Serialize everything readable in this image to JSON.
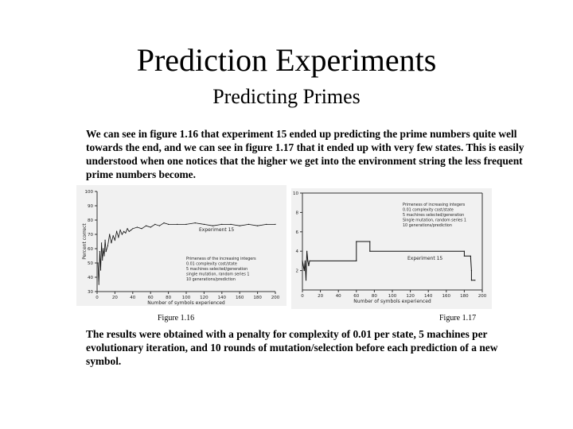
{
  "slide": {
    "title": "Prediction Experiments",
    "subtitle": "Predicting Primes",
    "paragraph_1": "We can see in figure 1.16 that experiment 15 ended up predicting the prime numbers quite well towards the end, and we can see in figure 1.17 that it ended up with very few states. This is easily understood when one notices that the higher we get into the environment string the less frequent prime numbers become.",
    "paragraph_2": "The results were obtained with a penalty for complexity of 0.01 per state, 5 machines per evolutionary iteration, and 10 rounds of mutation/selection before each prediction of a new symbol."
  },
  "figures": [
    {
      "caption": "Figure 1.16",
      "ylabel": "Percent correct",
      "xlabel": "Number of symbols experienced",
      "series_label": "Experiment 15",
      "legend_lines": [
        "Primeness of the increasing integers",
        "0.01 complexity cost/state",
        "5 machines selected/generation",
        "single mutation, random series 1",
        "10 generations/prediction"
      ],
      "yticks": [
        "100",
        "90",
        "80",
        "70",
        "60",
        "50",
        "40",
        "30"
      ],
      "xticks": [
        "0",
        "20",
        "40",
        "60",
        "80",
        "100",
        "120",
        "140",
        "160",
        "180",
        "200"
      ]
    },
    {
      "caption": "Figure 1.17",
      "ylabel": "Number of states",
      "xlabel": "Number of symbols experienced",
      "series_label": "Experiment 15",
      "legend_lines": [
        "Primeness of increasing integers",
        "0.01 complexity cost/state",
        "5 machines selected/generation",
        "Single mutation, random series 1",
        "10 generations/prediction"
      ],
      "yticks": [
        "10",
        "8",
        "6",
        "4",
        "2"
      ],
      "xticks": [
        "0",
        "20",
        "40",
        "60",
        "80",
        "100",
        "120",
        "140",
        "160",
        "180",
        "200"
      ]
    }
  ],
  "chart_data": [
    {
      "type": "line",
      "title": "",
      "xlabel": "Number of symbols experienced",
      "ylabel": "Percent correct",
      "xlim": [
        0,
        200
      ],
      "ylim": [
        30,
        100
      ],
      "series": [
        {
          "name": "Experiment 15",
          "x": [
            1,
            2,
            3,
            4,
            5,
            6,
            7,
            8,
            9,
            10,
            12,
            14,
            16,
            18,
            20,
            22,
            24,
            26,
            28,
            30,
            32,
            34,
            36,
            38,
            40,
            45,
            50,
            55,
            60,
            65,
            70,
            75,
            80,
            90,
            100,
            110,
            120,
            130,
            140,
            150,
            160,
            170,
            180,
            190,
            200
          ],
          "y": [
            50,
            35,
            58,
            45,
            64,
            52,
            60,
            55,
            66,
            58,
            62,
            70,
            64,
            69,
            66,
            72,
            68,
            73,
            70,
            72,
            71,
            74,
            72,
            73,
            74,
            75,
            74,
            76,
            75,
            77,
            76,
            78,
            77,
            77,
            77,
            78,
            77,
            76,
            77,
            77,
            76,
            77,
            76,
            77,
            77
          ]
        }
      ]
    },
    {
      "type": "line",
      "title": "",
      "xlabel": "Number of symbols experienced",
      "ylabel": "Number of states",
      "xlim": [
        0,
        200
      ],
      "ylim": [
        0,
        10
      ],
      "series": [
        {
          "name": "Experiment 15",
          "x": [
            0,
            2,
            3,
            4,
            5,
            6,
            7,
            8,
            60,
            60,
            75,
            75,
            180,
            180,
            187,
            188,
            188,
            192
          ],
          "y": [
            3,
            2,
            3,
            1,
            4,
            3,
            2.5,
            3,
            3,
            5,
            5,
            4,
            4,
            3.5,
            3.5,
            2,
            1,
            1
          ]
        }
      ]
    }
  ]
}
